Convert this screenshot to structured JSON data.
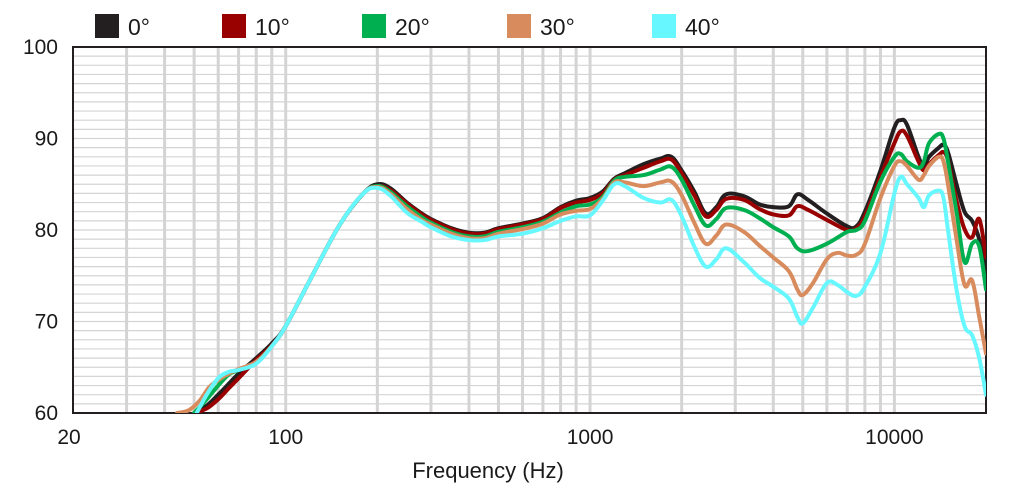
{
  "chart_data": {
    "type": "line",
    "title": "",
    "xlabel": "Frequency (Hz)",
    "ylabel": "",
    "x_scale": "log",
    "xlim": [
      20,
      20000
    ],
    "ylim": [
      60,
      100
    ],
    "x_ticks": [
      {
        "value": 20,
        "label": "20"
      },
      {
        "value": 100,
        "label": "100"
      },
      {
        "value": 1000,
        "label": "1000"
      },
      {
        "value": 10000,
        "label": "10000"
      }
    ],
    "y_ticks": [
      {
        "value": 60,
        "label": "60"
      },
      {
        "value": 70,
        "label": "70"
      },
      {
        "value": 80,
        "label": "80"
      },
      {
        "value": 90,
        "label": "90"
      },
      {
        "value": 100,
        "label": "100"
      }
    ],
    "grid": true,
    "legend_position": "top",
    "series": [
      {
        "name": "0°",
        "color": "#231f20",
        "points": [
          [
            50,
            60
          ],
          [
            55,
            60.8
          ],
          [
            60,
            62
          ],
          [
            65,
            63.2
          ],
          [
            70,
            64.3
          ],
          [
            80,
            66
          ],
          [
            90,
            67.6
          ],
          [
            100,
            69.5
          ],
          [
            120,
            74.5
          ],
          [
            150,
            80.5
          ],
          [
            180,
            84
          ],
          [
            200,
            85
          ],
          [
            220,
            84.6
          ],
          [
            250,
            83
          ],
          [
            280,
            81.8
          ],
          [
            300,
            81.2
          ],
          [
            350,
            80.2
          ],
          [
            400,
            79.7
          ],
          [
            450,
            79.7
          ],
          [
            500,
            80.2
          ],
          [
            600,
            80.7
          ],
          [
            700,
            81.3
          ],
          [
            800,
            82.5
          ],
          [
            900,
            83.2
          ],
          [
            1000,
            83.5
          ],
          [
            1100,
            84.2
          ],
          [
            1200,
            85.6
          ],
          [
            1300,
            86.2
          ],
          [
            1500,
            87.2
          ],
          [
            1700,
            87.8
          ],
          [
            1850,
            88
          ],
          [
            2000,
            86.5
          ],
          [
            2200,
            84.2
          ],
          [
            2400,
            81.8
          ],
          [
            2600,
            82.5
          ],
          [
            2800,
            83.9
          ],
          [
            3200,
            83.7
          ],
          [
            3600,
            82.8
          ],
          [
            4000,
            82.5
          ],
          [
            4500,
            82.6
          ],
          [
            4800,
            83.9
          ],
          [
            5200,
            83.3
          ],
          [
            6000,
            81.8
          ],
          [
            7000,
            80.4
          ],
          [
            7500,
            80.4
          ],
          [
            8000,
            82
          ],
          [
            9000,
            86.5
          ],
          [
            10000,
            91.2
          ],
          [
            10500,
            92
          ],
          [
            11000,
            91.5
          ],
          [
            12000,
            88
          ],
          [
            12500,
            87
          ],
          [
            13000,
            88
          ],
          [
            14000,
            89
          ],
          [
            14500,
            89.3
          ],
          [
            15000,
            88.5
          ],
          [
            16000,
            85
          ],
          [
            17000,
            82
          ],
          [
            18000,
            81
          ],
          [
            19000,
            79
          ],
          [
            20000,
            75.5
          ]
        ]
      },
      {
        "name": "10°",
        "color": "#990000",
        "points": [
          [
            50,
            60
          ],
          [
            55,
            60.5
          ],
          [
            60,
            61.5
          ],
          [
            65,
            62.7
          ],
          [
            70,
            63.8
          ],
          [
            80,
            65.8
          ],
          [
            90,
            67.4
          ],
          [
            100,
            69.5
          ],
          [
            120,
            74.5
          ],
          [
            150,
            80.5
          ],
          [
            180,
            84
          ],
          [
            200,
            84.8
          ],
          [
            220,
            84.4
          ],
          [
            250,
            82.9
          ],
          [
            280,
            81.7
          ],
          [
            300,
            81.1
          ],
          [
            350,
            80.1
          ],
          [
            400,
            79.6
          ],
          [
            450,
            79.6
          ],
          [
            500,
            80.1
          ],
          [
            600,
            80.6
          ],
          [
            700,
            81.2
          ],
          [
            800,
            82.4
          ],
          [
            900,
            83
          ],
          [
            1000,
            83.3
          ],
          [
            1100,
            84
          ],
          [
            1200,
            85.5
          ],
          [
            1300,
            86
          ],
          [
            1500,
            86.8
          ],
          [
            1700,
            87.5
          ],
          [
            1850,
            87.7
          ],
          [
            2000,
            86.2
          ],
          [
            2200,
            83.8
          ],
          [
            2400,
            81.5
          ],
          [
            2600,
            82.2
          ],
          [
            2800,
            83.4
          ],
          [
            3200,
            83.3
          ],
          [
            3600,
            82.3
          ],
          [
            4000,
            81.7
          ],
          [
            4500,
            81.6
          ],
          [
            4800,
            82.6
          ],
          [
            5200,
            82.2
          ],
          [
            6000,
            81.1
          ],
          [
            7000,
            80
          ],
          [
            7500,
            80.2
          ],
          [
            8000,
            81.5
          ],
          [
            9000,
            85.8
          ],
          [
            10000,
            89.5
          ],
          [
            10500,
            90.8
          ],
          [
            11000,
            90.3
          ],
          [
            12000,
            87.5
          ],
          [
            12500,
            86.5
          ],
          [
            13000,
            87.2
          ],
          [
            14000,
            88.2
          ],
          [
            14500,
            88.5
          ],
          [
            15000,
            87.6
          ],
          [
            16000,
            83.2
          ],
          [
            17000,
            80.1
          ],
          [
            18000,
            79.2
          ],
          [
            19000,
            81.2
          ],
          [
            20000,
            77
          ]
        ]
      },
      {
        "name": "20°",
        "color": "#00b050",
        "points": [
          [
            50,
            60
          ],
          [
            55,
            61.5
          ],
          [
            60,
            63
          ],
          [
            65,
            64.2
          ],
          [
            70,
            64.7
          ],
          [
            80,
            65.6
          ],
          [
            90,
            67.3
          ],
          [
            100,
            69.5
          ],
          [
            120,
            74.5
          ],
          [
            150,
            80.5
          ],
          [
            180,
            84
          ],
          [
            200,
            84.8
          ],
          [
            220,
            84.2
          ],
          [
            250,
            82.6
          ],
          [
            280,
            81.4
          ],
          [
            300,
            80.8
          ],
          [
            350,
            79.8
          ],
          [
            400,
            79.3
          ],
          [
            450,
            79.3
          ],
          [
            500,
            79.8
          ],
          [
            600,
            80.3
          ],
          [
            700,
            80.9
          ],
          [
            800,
            81.9
          ],
          [
            900,
            82.6
          ],
          [
            1000,
            82.8
          ],
          [
            1100,
            83.6
          ],
          [
            1200,
            85.4
          ],
          [
            1300,
            85.8
          ],
          [
            1500,
            86
          ],
          [
            1700,
            86.6
          ],
          [
            1850,
            86.9
          ],
          [
            2000,
            85.5
          ],
          [
            2200,
            82.7
          ],
          [
            2400,
            80.5
          ],
          [
            2600,
            81.2
          ],
          [
            2800,
            82.4
          ],
          [
            3200,
            82.2
          ],
          [
            3600,
            81.3
          ],
          [
            4000,
            80.3
          ],
          [
            4500,
            79.3
          ],
          [
            4800,
            78
          ],
          [
            5200,
            77.7
          ],
          [
            6000,
            78.5
          ],
          [
            7000,
            79.8
          ],
          [
            7500,
            80
          ],
          [
            8000,
            81
          ],
          [
            9000,
            85.3
          ],
          [
            10000,
            88
          ],
          [
            10500,
            88.3
          ],
          [
            11000,
            87.5
          ],
          [
            12000,
            86.8
          ],
          [
            12500,
            87.5
          ],
          [
            13000,
            89.5
          ],
          [
            14000,
            90.5
          ],
          [
            14500,
            90
          ],
          [
            15000,
            87.5
          ],
          [
            16000,
            82
          ],
          [
            17000,
            76.5
          ],
          [
            18000,
            78.5
          ],
          [
            19000,
            78.2
          ],
          [
            20000,
            73.5
          ]
        ]
      },
      {
        "name": "30°",
        "color": "#d88c5e",
        "points": [
          [
            44,
            60
          ],
          [
            48,
            60.3
          ],
          [
            52,
            61.3
          ],
          [
            56,
            62.8
          ],
          [
            60,
            63.6
          ],
          [
            65,
            64.3
          ],
          [
            70,
            64.8
          ],
          [
            80,
            65.6
          ],
          [
            90,
            67.3
          ],
          [
            100,
            69.5
          ],
          [
            120,
            74.5
          ],
          [
            150,
            80.5
          ],
          [
            180,
            84
          ],
          [
            200,
            84.7
          ],
          [
            220,
            84
          ],
          [
            250,
            82.3
          ],
          [
            280,
            81.1
          ],
          [
            300,
            80.6
          ],
          [
            350,
            79.6
          ],
          [
            400,
            79.1
          ],
          [
            450,
            79.1
          ],
          [
            500,
            79.6
          ],
          [
            600,
            80.1
          ],
          [
            700,
            80.7
          ],
          [
            800,
            81.7
          ],
          [
            900,
            82.1
          ],
          [
            1000,
            82.3
          ],
          [
            1100,
            83.4
          ],
          [
            1200,
            85.2
          ],
          [
            1300,
            85.2
          ],
          [
            1500,
            84.8
          ],
          [
            1700,
            85.2
          ],
          [
            1850,
            85.3
          ],
          [
            2000,
            83.8
          ],
          [
            2200,
            80.8
          ],
          [
            2400,
            78.5
          ],
          [
            2600,
            79.4
          ],
          [
            2800,
            80.6
          ],
          [
            3200,
            79.8
          ],
          [
            3600,
            78.3
          ],
          [
            4000,
            77
          ],
          [
            4500,
            75.5
          ],
          [
            4800,
            73.5
          ],
          [
            5000,
            72.9
          ],
          [
            5400,
            74.2
          ],
          [
            6000,
            76.8
          ],
          [
            6500,
            77.5
          ],
          [
            7000,
            77.2
          ],
          [
            7500,
            77.3
          ],
          [
            8000,
            78.5
          ],
          [
            9000,
            83.5
          ],
          [
            10000,
            87
          ],
          [
            10500,
            87.5
          ],
          [
            11000,
            87
          ],
          [
            12000,
            85.5
          ],
          [
            12500,
            86
          ],
          [
            13000,
            87
          ],
          [
            14000,
            88
          ],
          [
            14500,
            87.5
          ],
          [
            15000,
            85
          ],
          [
            16000,
            79
          ],
          [
            17000,
            74
          ],
          [
            18000,
            74.5
          ],
          [
            19000,
            70.5
          ],
          [
            20000,
            66.5
          ]
        ]
      },
      {
        "name": "40°",
        "color": "#66f7ff",
        "points": [
          [
            51,
            60
          ],
          [
            55,
            62
          ],
          [
            60,
            63.8
          ],
          [
            65,
            64.5
          ],
          [
            70,
            64.7
          ],
          [
            80,
            65.4
          ],
          [
            90,
            67.3
          ],
          [
            100,
            69.5
          ],
          [
            120,
            74.5
          ],
          [
            150,
            80.5
          ],
          [
            180,
            84
          ],
          [
            200,
            84.6
          ],
          [
            220,
            83.8
          ],
          [
            250,
            81.9
          ],
          [
            280,
            80.9
          ],
          [
            300,
            80.3
          ],
          [
            350,
            79.3
          ],
          [
            400,
            78.9
          ],
          [
            450,
            78.9
          ],
          [
            500,
            79.3
          ],
          [
            600,
            79.6
          ],
          [
            700,
            80.2
          ],
          [
            800,
            81
          ],
          [
            900,
            81.5
          ],
          [
            1000,
            81.6
          ],
          [
            1100,
            83.2
          ],
          [
            1200,
            85
          ],
          [
            1300,
            84.8
          ],
          [
            1500,
            83.5
          ],
          [
            1700,
            83
          ],
          [
            1850,
            83.3
          ],
          [
            2000,
            81.5
          ],
          [
            2200,
            78.2
          ],
          [
            2400,
            76
          ],
          [
            2600,
            76.8
          ],
          [
            2800,
            78
          ],
          [
            3200,
            76.5
          ],
          [
            3600,
            74.8
          ],
          [
            4000,
            73.8
          ],
          [
            4500,
            72.5
          ],
          [
            4800,
            70.5
          ],
          [
            5000,
            69.8
          ],
          [
            5400,
            71.5
          ],
          [
            6000,
            74.2
          ],
          [
            6500,
            74
          ],
          [
            7000,
            73.2
          ],
          [
            7500,
            72.8
          ],
          [
            8000,
            73.8
          ],
          [
            9000,
            77.5
          ],
          [
            10000,
            84
          ],
          [
            10500,
            85.8
          ],
          [
            11000,
            85
          ],
          [
            12000,
            83.5
          ],
          [
            12500,
            82.5
          ],
          [
            13000,
            83.8
          ],
          [
            14000,
            84.3
          ],
          [
            14500,
            83.5
          ],
          [
            15000,
            80
          ],
          [
            16000,
            73.5
          ],
          [
            17000,
            69.5
          ],
          [
            18000,
            68.5
          ],
          [
            19000,
            66
          ],
          [
            20000,
            62
          ]
        ]
      }
    ]
  }
}
